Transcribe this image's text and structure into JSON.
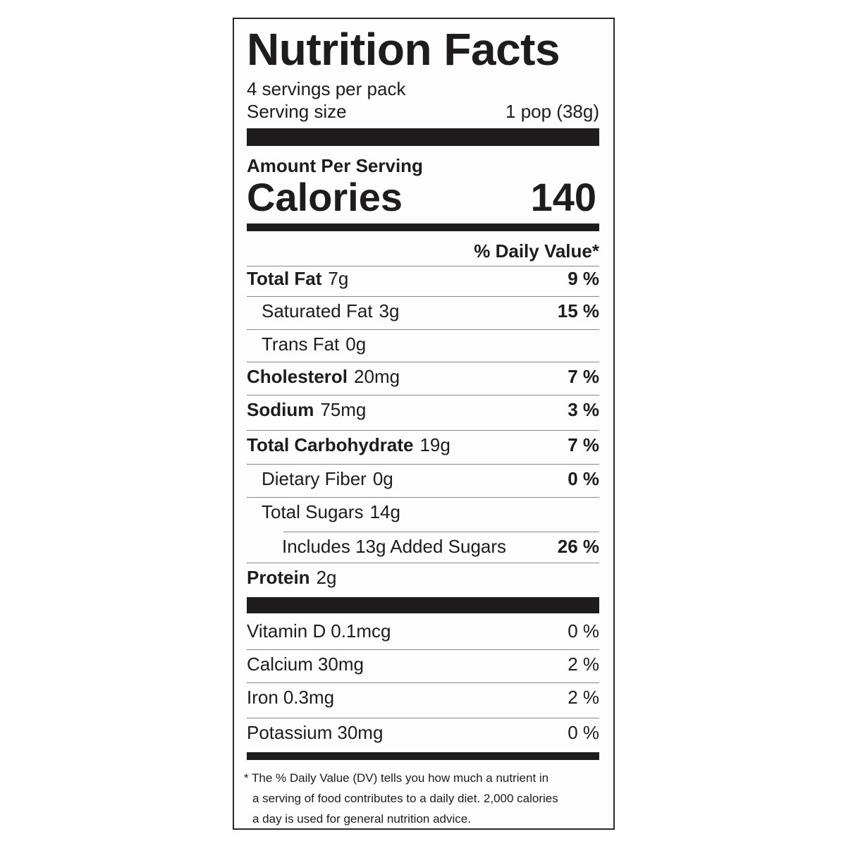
{
  "title": "Nutrition Facts",
  "servings_per_container": "4 servings per pack",
  "serving_size_label": "Serving size",
  "serving_size_value": "1 pop (38g)",
  "amount_per_serving": "Amount Per Serving",
  "calories_label": "Calories",
  "calories_value": "140",
  "daily_value_header": "% Daily Value*",
  "nutrients": [
    {
      "name": "Total Fat",
      "amount": "7g",
      "dv": "9 %",
      "bold": true,
      "indent": 0
    },
    {
      "name": "Saturated Fat",
      "amount": "3g",
      "dv": "15 %",
      "bold": false,
      "indent": 1
    },
    {
      "name": "Trans Fat",
      "amount": "0g",
      "dv": "",
      "bold": false,
      "indent": 1
    },
    {
      "name": "Cholesterol",
      "amount": "20mg",
      "dv": "7 %",
      "bold": true,
      "indent": 0
    },
    {
      "name": "Sodium",
      "amount": "75mg",
      "dv": "3 %",
      "bold": true,
      "indent": 0
    },
    {
      "name": "Total Carbohydrate",
      "amount": "19g",
      "dv": "7 %",
      "bold": true,
      "indent": 0
    },
    {
      "name": "Dietary Fiber",
      "amount": "0g",
      "dv": "0 %",
      "bold": false,
      "indent": 1
    },
    {
      "name": "Total Sugars",
      "amount": "14g",
      "dv": "",
      "bold": false,
      "indent": 1
    },
    {
      "name": "Includes 13g Added Sugars",
      "amount": "",
      "dv": "26 %",
      "bold": false,
      "indent": 2
    },
    {
      "name": "Protein",
      "amount": "2g",
      "dv": "",
      "bold": true,
      "indent": 0
    }
  ],
  "vitamins": [
    {
      "name": "Vitamin D",
      "amount": "0.1mcg",
      "dv": "0 %"
    },
    {
      "name": "Calcium",
      "amount": "30mg",
      "dv": "2 %"
    },
    {
      "name": "Iron",
      "amount": "0.3mg",
      "dv": "2 %"
    },
    {
      "name": "Potassium",
      "amount": "30mg",
      "dv": "0 %"
    }
  ],
  "footnote": {
    "line1": "* The % Daily Value (DV) tells you how much a nutrient in",
    "line2": "a serving of food contributes to a daily diet. 2,000 calories",
    "line3": "a day is used for general nutrition advice."
  }
}
